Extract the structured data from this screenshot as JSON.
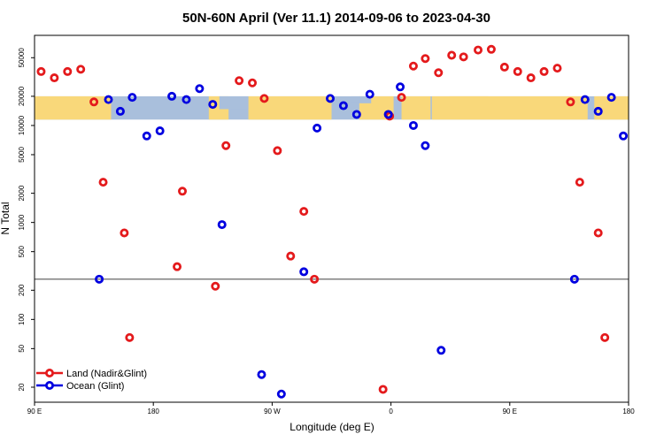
{
  "chart_data": {
    "type": "scatter",
    "title": "50N-60N April (Ver 11.1)   2014-09-06 to 2023-04-30",
    "xlabel": "Longitude (deg E)",
    "ylabel": "N Total",
    "x_ticks": [
      {
        "value": 90,
        "label": "90 E"
      },
      {
        "value": 180,
        "label": "180"
      },
      {
        "value": 270,
        "label": "90 W"
      },
      {
        "value": 360,
        "label": "0"
      },
      {
        "value": 450,
        "label": "90 E"
      },
      {
        "value": 540,
        "label": "180"
      }
    ],
    "xlim": [
      90,
      540
    ],
    "y_scale": "log",
    "ylim": [
      14,
      85000
    ],
    "y_ticks": [
      20,
      50,
      100,
      200,
      500,
      1000,
      2000,
      5000,
      10000,
      20000,
      50000
    ],
    "reference_line": 260,
    "map_strip": {
      "y_range": [
        11500,
        20000
      ],
      "land_color": "#f9d87a",
      "ocean_color": "#a9bfdc"
    },
    "legend": {
      "position": "bottom-left"
    },
    "series": [
      {
        "name": "Land (Nadir&Glint)",
        "color": "#e41a1c",
        "points": [
          [
            95,
            36000
          ],
          [
            105,
            31000
          ],
          [
            115,
            36000
          ],
          [
            125,
            38000
          ],
          [
            135,
            17500
          ],
          [
            142,
            2600
          ],
          [
            158,
            780
          ],
          [
            162,
            65
          ],
          [
            198,
            350
          ],
          [
            202,
            2100
          ],
          [
            227,
            220
          ],
          [
            235,
            6200
          ],
          [
            245,
            29000
          ],
          [
            255,
            27500
          ],
          [
            264,
            19000
          ],
          [
            274,
            5500
          ],
          [
            284,
            450
          ],
          [
            294,
            1300
          ],
          [
            302,
            260
          ],
          [
            354,
            19
          ],
          [
            359,
            12500
          ],
          [
            368,
            19500
          ],
          [
            377,
            41000
          ],
          [
            386,
            49000
          ],
          [
            396,
            35000
          ],
          [
            406,
            53000
          ],
          [
            415,
            51000
          ],
          [
            426,
            60000
          ],
          [
            436,
            61000
          ],
          [
            446,
            40000
          ],
          [
            456,
            36000
          ],
          [
            466,
            31000
          ],
          [
            476,
            36000
          ],
          [
            486,
            39000
          ],
          [
            496,
            17500
          ],
          [
            503,
            2600
          ],
          [
            517,
            780
          ],
          [
            522,
            65
          ]
        ]
      },
      {
        "name": "Ocean (Glint)",
        "color": "#0000e0",
        "points": [
          [
            139,
            260
          ],
          [
            146,
            18500
          ],
          [
            155,
            14000
          ],
          [
            164,
            19500
          ],
          [
            175,
            7800
          ],
          [
            185,
            8800
          ],
          [
            194,
            20000
          ],
          [
            205,
            18500
          ],
          [
            215,
            24000
          ],
          [
            225,
            16500
          ],
          [
            232,
            950
          ],
          [
            262,
            27
          ],
          [
            277,
            17
          ],
          [
            294,
            310
          ],
          [
            304,
            9400
          ],
          [
            314,
            19000
          ],
          [
            324,
            16000
          ],
          [
            334,
            13000
          ],
          [
            344,
            21000
          ],
          [
            358,
            13000
          ],
          [
            367,
            25000
          ],
          [
            377,
            10000
          ],
          [
            386,
            6200
          ],
          [
            398,
            48
          ],
          [
            499,
            260
          ],
          [
            507,
            18500
          ],
          [
            517,
            14000
          ],
          [
            527,
            19500
          ],
          [
            536,
            7800
          ]
        ]
      }
    ]
  }
}
